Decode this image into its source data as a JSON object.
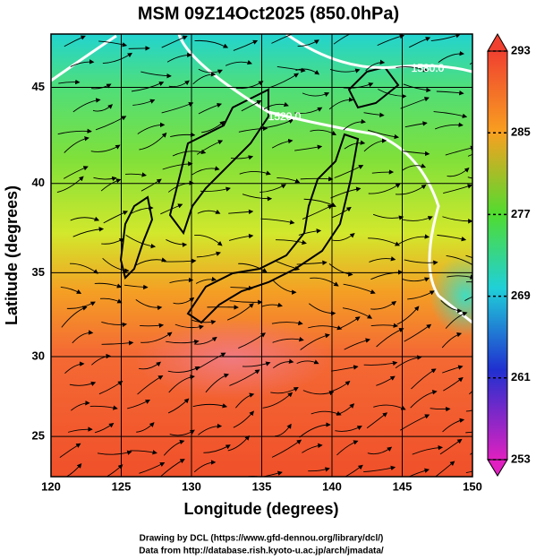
{
  "chart_data": {
    "type": "map",
    "title": "MSM 09Z14Oct2025 (850.0hPa)",
    "xlabel": "Longitude (degrees)",
    "ylabel": "Latitude  (degrees)",
    "xlim": [
      120,
      150
    ],
    "xticks": [
      120,
      125,
      130,
      135,
      140,
      145,
      150
    ],
    "ylim": [
      22.4,
      47.6
    ],
    "yticks": [
      25,
      30,
      35,
      40,
      45
    ],
    "projection": "mercator",
    "grid": true,
    "contour_labels": [
      "1580.0",
      "1520.0"
    ],
    "colorbar": {
      "lim": [
        253,
        293
      ],
      "ticks": [
        253,
        261,
        269,
        277,
        285,
        293
      ]
    },
    "footer": [
      "Drawing by DCL (https://www.gfd-dennou.org/library/dcl/)",
      "Data from http://database.rish.kyoto-u.ac.jp/arch/jmadata/"
    ]
  }
}
